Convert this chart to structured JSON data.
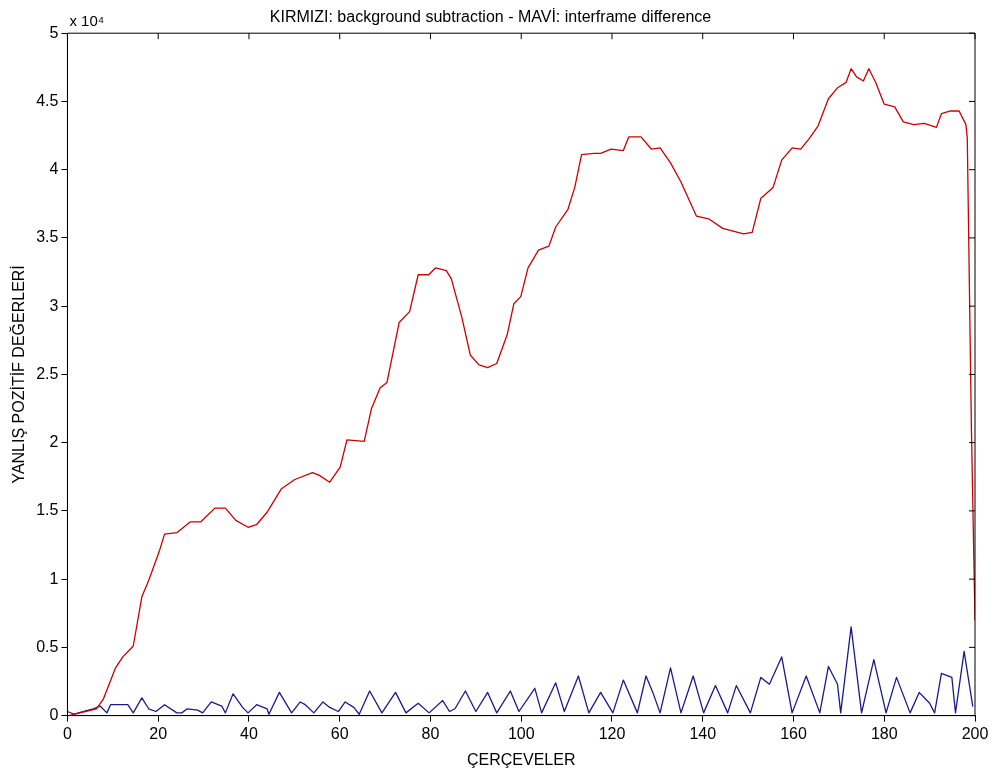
{
  "chart_data": {
    "type": "line",
    "title": "KIRMIZI: background subtraction - MAVİ: interframe difference",
    "xlabel": "ÇERÇEVELER",
    "ylabel": "YANLIŞ POZİTİF DEĞERLERİ",
    "annotations": [
      "x 10⁴"
    ],
    "xlim": [
      0,
      200
    ],
    "xticks": [
      0,
      20,
      40,
      60,
      80,
      100,
      120,
      140,
      160,
      180,
      200
    ],
    "ylim": [
      0,
      5
    ],
    "yticks": [
      0,
      0.5,
      1,
      1.5,
      2,
      2.5,
      3,
      3.5,
      4,
      4.5,
      5
    ],
    "grid": false,
    "legend": false,
    "marker": "none",
    "line_style": "solid",
    "series": [
      {
        "color": "#cc0000",
        "x": [
          0.3,
          6.4,
          7.9,
          10.6,
          12.2,
          14.5,
          16.4,
          17.9,
          19.1,
          20.2,
          21.4,
          24.1,
          27.1,
          29.4,
          32.5,
          34.8,
          37.1,
          39.8,
          41.7,
          44,
          47.1,
          50.1,
          54,
          55.5,
          57.8,
          60.1,
          61.6,
          65.4,
          67,
          68.9,
          70.4,
          73.1,
          75.4,
          77.3,
          79.6,
          81.1,
          83.5,
          84.6,
          86.9,
          88.8,
          90.7,
          92.6,
          94.6,
          96.9,
          98.4,
          99.9,
          101.5,
          103.8,
          106.1,
          107.6,
          110.3,
          111.8,
          113.3,
          116,
          117.5,
          119.8,
          122.5,
          123.7,
          126.4,
          128.7,
          130.6,
          132.9,
          135.2,
          138.6,
          141.3,
          144.4,
          146.7,
          149,
          150.9,
          152.8,
          155.5,
          157.4,
          159.7,
          161.6,
          163.5,
          165.4,
          167.7,
          169.7,
          171.6,
          172.7,
          173.9,
          175.4,
          176.6,
          178.1,
          180,
          182.3,
          184.2,
          186.5,
          188.8,
          191.5,
          192.6,
          194.6,
          196.5,
          198,
          198.3,
          198.6,
          199.2,
          200
        ],
        "values": [
          0,
          0.05,
          0.12,
          0.35,
          0.43,
          0.51,
          0.87,
          0.99,
          1.1,
          1.2,
          1.33,
          1.34,
          1.42,
          1.42,
          1.52,
          1.52,
          1.43,
          1.38,
          1.4,
          1.49,
          1.66,
          1.73,
          1.78,
          1.76,
          1.71,
          1.82,
          2.02,
          2.01,
          2.25,
          2.4,
          2.44,
          2.88,
          2.96,
          3.23,
          3.23,
          3.28,
          3.26,
          3.2,
          2.92,
          2.64,
          2.57,
          2.55,
          2.58,
          2.79,
          3.02,
          3.07,
          3.28,
          3.41,
          3.44,
          3.58,
          3.71,
          3.87,
          4.11,
          4.12,
          4.12,
          4.15,
          4.14,
          4.24,
          4.24,
          4.15,
          4.16,
          4.05,
          3.91,
          3.66,
          3.64,
          3.57,
          3.55,
          3.53,
          3.54,
          3.79,
          3.87,
          4.07,
          4.16,
          4.15,
          4.23,
          4.32,
          4.52,
          4.6,
          4.64,
          4.74,
          4.68,
          4.65,
          4.74,
          4.64,
          4.48,
          4.46,
          4.35,
          4.33,
          4.34,
          4.31,
          4.41,
          4.43,
          4.43,
          4.33,
          4.23,
          3.53,
          2.12,
          0.7
        ]
      },
      {
        "color": "#1a1a8c",
        "x": [
          0,
          1.5,
          3.4,
          5.7,
          7.2,
          8.7,
          9.5,
          13.3,
          14.5,
          16.4,
          17.9,
          19.5,
          21.4,
          24.1,
          25.2,
          26.4,
          28.7,
          29.8,
          31.7,
          34,
          34.8,
          36.5,
          38.6,
          39.8,
          41.7,
          44,
          44.4,
          46.7,
          49.4,
          51.3,
          52.4,
          54.3,
          56.3,
          57.8,
          59.7,
          61.2,
          63.1,
          64.3,
          66.6,
          69.3,
          72.3,
          74.6,
          77.3,
          79.7,
          82.7,
          84.2,
          85.4,
          87.7,
          90,
          92.6,
          94.6,
          97.6,
          99.5,
          103,
          104.5,
          107.6,
          109.5,
          112.6,
          114.9,
          117.5,
          120.2,
          122.5,
          125.6,
          127.5,
          129,
          130.6,
          132.9,
          135.2,
          137.9,
          140.2,
          142.8,
          145.5,
          147.4,
          150.5,
          152.8,
          154.7,
          157.4,
          159.7,
          162.8,
          165.8,
          167.7,
          169.7,
          170.4,
          172.7,
          175,
          177.7,
          180.4,
          182.7,
          185.7,
          187.7,
          190,
          191.1,
          192.6,
          194.9,
          195.7,
          197.6,
          199.5
        ],
        "values": [
          0.03,
          0.01,
          0.03,
          0.05,
          0.07,
          0.02,
          0.08,
          0.08,
          0.02,
          0.13,
          0.05,
          0.03,
          0.08,
          0.02,
          0.02,
          0.05,
          0.04,
          0.02,
          0.1,
          0.07,
          0.02,
          0.16,
          0.06,
          0.02,
          0.08,
          0.05,
          0.01,
          0.17,
          0.02,
          0.1,
          0.08,
          0.02,
          0.1,
          0.06,
          0.03,
          0.1,
          0.06,
          0.01,
          0.18,
          0.02,
          0.17,
          0.02,
          0.09,
          0.02,
          0.11,
          0.03,
          0.05,
          0.18,
          0.03,
          0.17,
          0.02,
          0.18,
          0.03,
          0.2,
          0.02,
          0.24,
          0.03,
          0.29,
          0.02,
          0.17,
          0.02,
          0.26,
          0.02,
          0.29,
          0.17,
          0.02,
          0.35,
          0.02,
          0.29,
          0.02,
          0.22,
          0.02,
          0.22,
          0.02,
          0.28,
          0.23,
          0.43,
          0.02,
          0.29,
          0.02,
          0.36,
          0.23,
          0.02,
          0.65,
          0.02,
          0.41,
          0.02,
          0.28,
          0.02,
          0.17,
          0.09,
          0.02,
          0.31,
          0.28,
          0.02,
          0.47,
          0.07
        ]
      }
    ]
  }
}
